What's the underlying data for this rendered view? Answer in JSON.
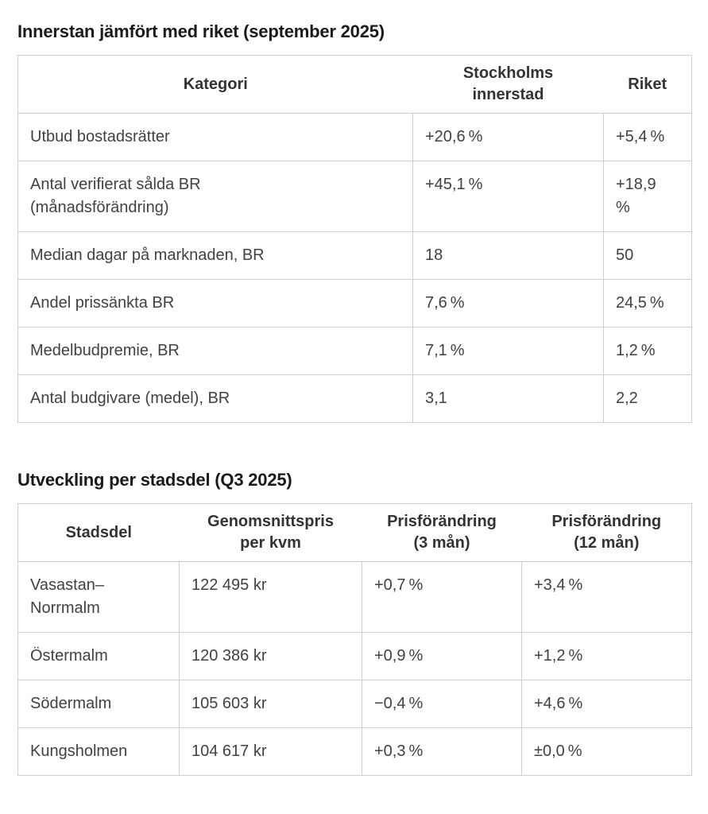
{
  "colors": {
    "background": "#ffffff",
    "title_text": "#1a1a1a",
    "body_text": "#414141",
    "header_text": "#333333",
    "border": "#cfcfcf"
  },
  "section1": {
    "title": "Innerstan jämfört med riket (september 2025)",
    "table": {
      "columns": [
        "Kategori",
        "Stockholms\ninnerstad",
        "Riket"
      ],
      "rows": [
        [
          "Utbud bostadsrätter",
          "+20,6 %",
          "+5,4 %"
        ],
        [
          "Antal verifierat sålda BR\n(månadsförändring)",
          "+45,1 %",
          "+18,9\n%"
        ],
        [
          "Median dagar på marknaden, BR",
          "18",
          "50"
        ],
        [
          "Andel prissänkta BR",
          "7,6 %",
          "24,5 %"
        ],
        [
          "Medelbudpremie, BR",
          "7,1 %",
          "1,2 %"
        ],
        [
          "Antal budgivare (medel), BR",
          "3,1",
          "2,2"
        ]
      ]
    }
  },
  "section2": {
    "title": "Utveckling per stadsdel (Q3 2025)",
    "table": {
      "columns": [
        "Stadsdel",
        "Genomsnittspris\nper kvm",
        "Prisförändring\n(3 mån)",
        "Prisförändring\n(12 mån)"
      ],
      "rows": [
        [
          "Vasastan–\nNorrmalm",
          "122 495 kr",
          "+0,7 %",
          "+3,4 %"
        ],
        [
          "Östermalm",
          "120 386 kr",
          "+0,9 %",
          "+1,2 %"
        ],
        [
          "Södermalm",
          "105 603 kr",
          "−0,4 %",
          "+4,6 %"
        ],
        [
          "Kungsholmen",
          "104 617 kr",
          "+0,3 %",
          "±0,0 %"
        ]
      ]
    }
  }
}
